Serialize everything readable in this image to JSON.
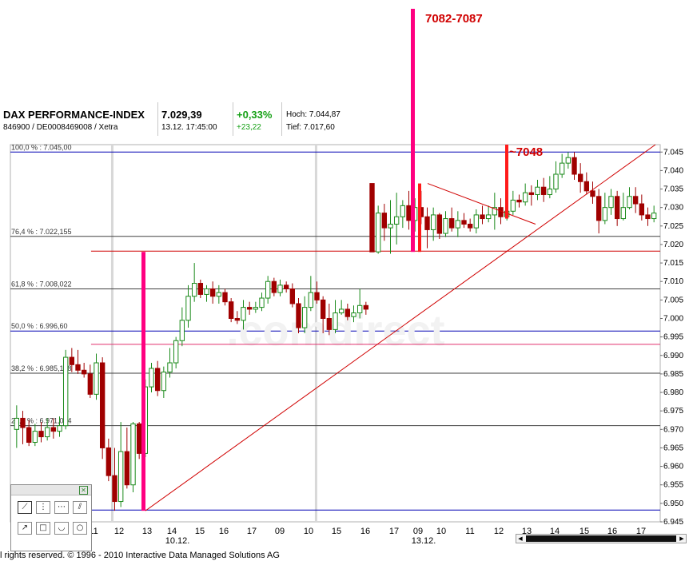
{
  "header": {
    "index_name": "DAX PERFORMANCE-INDEX",
    "identifiers": "846900 / DE0008469008 / Xetra",
    "last_price": "7.029,39",
    "timestamp": "13.12. 17:45:00",
    "change_pct": "+0,33%",
    "change_abs": "+23,22",
    "high": "Hoch: 7.044,87",
    "low": "Tief: 7.017,60"
  },
  "annotations": {
    "target_zone": "7082-7087",
    "target_level": "~7048"
  },
  "toolbox": {
    "tools": [
      "line-tool",
      "vertical-line-tool",
      "horizontal-line-tool",
      "parallel-lines-tool",
      "arrow-tool",
      "rectangle-tool",
      "arc-tool",
      "circle-tool"
    ]
  },
  "footer": {
    "copyright": "l rights reserved. © 1996 - 2010 Interactive Data Managed Solutions AG"
  },
  "watermark": ".comdirect",
  "colors": {
    "up": "#1a8a1a",
    "down": "#a00000",
    "trend": "#d00000",
    "magenta": "#ff0080",
    "fib_blue": "#0000b4"
  },
  "chart_data": {
    "type": "candlestick",
    "title": "DAX PERFORMANCE-INDEX",
    "ylim": [
      6.945,
      7.047
    ],
    "y_ticks": [
      6.945,
      6.95,
      6.955,
      6.96,
      6.965,
      6.97,
      6.975,
      6.98,
      6.985,
      6.99,
      6.995,
      7.0,
      7.005,
      7.01,
      7.015,
      7.02,
      7.025,
      7.03,
      7.035,
      7.04,
      7.045
    ],
    "y_tick_labels": [
      "6.945",
      "6.950",
      "6.955",
      "6.960",
      "6.965",
      "6.970",
      "6.975",
      "6.980",
      "6.985",
      "6.990",
      "6.995",
      "7.000",
      "7.005",
      "7.010",
      "7.015",
      "7.020",
      "7.025",
      "7.030",
      "7.035",
      "7.040",
      "7.045"
    ],
    "time_min": 13.5,
    "time_max": 42.2,
    "x_ticks": [
      {
        "t": 15,
        "label": "15"
      },
      {
        "t": 16,
        "label": "16"
      },
      {
        "t": 17,
        "label": "17"
      },
      {
        "t": 33,
        "label": "09"
      },
      {
        "t": 34,
        "label": "10"
      },
      {
        "t": 35,
        "label": "11"
      },
      {
        "t": 36,
        "label": "12"
      },
      {
        "t": 37,
        "label": "13"
      },
      {
        "t": 38,
        "label": "14"
      },
      {
        "t": 39,
        "label": "15"
      },
      {
        "t": 40,
        "label": "16"
      },
      {
        "t": 41,
        "label": "17"
      },
      {
        "t": 57,
        "label": "09"
      },
      {
        "t": 58,
        "label": "10"
      },
      {
        "t": 59,
        "label": "11"
      },
      {
        "t": 60,
        "label": "12"
      },
      {
        "t": 61,
        "label": "13"
      },
      {
        "t": 62,
        "label": "14"
      },
      {
        "t": 63,
        "label": "15"
      },
      {
        "t": 64,
        "label": "16"
      },
      {
        "t": 65,
        "label": "17"
      }
    ],
    "date_labels": [
      {
        "t": 33,
        "label": "10.12."
      },
      {
        "t": 57,
        "label": "13.12."
      }
    ],
    "fib_levels": [
      {
        "label": "100,0 % : 7.045,00",
        "value": 7.045,
        "color": "blue"
      },
      {
        "label": "76,4 % : 7.022,155",
        "value": 7.0222,
        "color": "dark"
      },
      {
        "label": "61,8 % : 7.008,022",
        "value": 7.008,
        "color": "dark"
      },
      {
        "label": "50,0 % : 6.996,60",
        "value": 6.9966,
        "color": "blue"
      },
      {
        "label": "38,2 % : 6.985,178",
        "value": 6.9852,
        "color": "dark"
      },
      {
        "label": "23,6 % : 6.971,044",
        "value": 6.971,
        "color": "dark"
      },
      {
        "label": "",
        "value": 6.9482,
        "color": "blue"
      }
    ],
    "candles": [
      [
        6.97,
        6.973,
        6.9765,
        6.965
      ],
      [
        6.973,
        6.9705,
        6.975,
        6.966
      ],
      [
        6.9705,
        6.9665,
        6.9725,
        6.9655
      ],
      [
        6.9665,
        6.9695,
        6.9715,
        6.9655
      ],
      [
        6.9695,
        6.968,
        6.972,
        6.9665
      ],
      [
        6.968,
        6.9705,
        6.973,
        6.967
      ],
      [
        6.9705,
        6.9695,
        6.973,
        6.9675
      ],
      [
        6.9695,
        6.971,
        6.9735,
        6.968
      ],
      [
        6.971,
        6.9895,
        6.9915,
        6.97
      ],
      [
        6.9895,
        6.9875,
        6.992,
        6.9855
      ],
      [
        6.9875,
        6.986,
        6.9915,
        6.985
      ],
      [
        6.986,
        6.985,
        6.988,
        6.984
      ],
      [
        6.985,
        6.9795,
        6.9875,
        6.9785
      ],
      [
        6.9795,
        6.988,
        6.9905,
        6.978
      ],
      [
        6.988,
        6.965,
        6.9895,
        6.962
      ],
      [
        6.965,
        6.9575,
        6.9675,
        6.956
      ],
      [
        6.9575,
        6.9505,
        6.965,
        6.948
      ],
      [
        6.9505,
        6.964,
        6.972,
        6.949
      ],
      [
        6.964,
        6.955,
        6.9705,
        6.954
      ],
      [
        6.955,
        6.9715,
        6.972,
        6.953
      ],
      [
        6.9715,
        6.9635,
        6.972,
        6.962
      ],
      [
        6.9635,
        6.9815,
        6.9835,
        6.9625
      ],
      [
        6.9815,
        6.9865,
        6.988,
        6.98
      ],
      [
        6.9865,
        6.9805,
        6.9885,
        6.979
      ],
      [
        6.9805,
        6.9855,
        6.987,
        6.9785
      ],
      [
        6.9855,
        6.988,
        6.992,
        6.984
      ],
      [
        6.988,
        6.994,
        6.995,
        6.9865
      ],
      [
        6.994,
        6.9995,
        7.003,
        6.9925
      ],
      [
        6.9995,
        7.006,
        7.009,
        6.9975
      ],
      [
        7.006,
        7.0095,
        7.015,
        7.0045
      ],
      [
        7.0095,
        7.0065,
        7.0105,
        7.0055
      ],
      [
        7.0065,
        7.008,
        7.009,
        7.0045
      ],
      [
        7.008,
        7.006,
        7.01,
        7.004
      ],
      [
        7.006,
        7.007,
        7.009,
        7.004
      ],
      [
        7.007,
        7.0045,
        7.008,
        7.0035
      ],
      [
        7.0045,
        7.0,
        7.0055,
        6.999
      ],
      [
        7.0,
        6.9995,
        7.002,
        6.9985
      ],
      [
        6.9995,
        7.003,
        7.005,
        6.997
      ],
      [
        7.003,
        7.0025,
        7.0045,
        7.001
      ],
      [
        7.0025,
        7.003,
        7.0045,
        7.0015
      ],
      [
        7.003,
        7.0055,
        7.007,
        7.002
      ],
      [
        7.0055,
        7.01,
        7.0115,
        7.004
      ],
      [
        7.01,
        7.007,
        7.011,
        7.006
      ],
      [
        7.007,
        7.009,
        7.0105,
        7.006
      ],
      [
        7.009,
        7.008,
        7.01,
        7.007
      ],
      [
        7.008,
        7.004,
        7.0095,
        7.003
      ],
      [
        7.004,
        6.9975,
        7.0055,
        6.996
      ],
      [
        6.9975,
        7.003,
        7.006,
        6.996
      ],
      [
        7.003,
        7.007,
        7.0115,
        7.002
      ],
      [
        7.007,
        7.005,
        7.01,
        7.004
      ],
      [
        7.005,
        7.0,
        7.006,
        6.996
      ],
      [
        7.0,
        6.997,
        7.004,
        6.9955
      ],
      [
        6.997,
        7.0015,
        7.005,
        6.996
      ],
      [
        7.0015,
        7.0025,
        7.005,
        7.001
      ],
      [
        7.0025,
        7.0005,
        7.004,
        6.9995
      ],
      [
        7.0005,
        7.0015,
        7.0035,
        6.999
      ],
      [
        7.0015,
        7.0035,
        7.008,
        7.0
      ],
      [
        7.0035,
        7.0025,
        7.0045,
        7.001
      ],
      [
        7.0365,
        7.018,
        7.0365,
        7.018
      ],
      [
        7.018,
        7.0285,
        7.0305,
        7.0175
      ],
      [
        7.0285,
        7.0245,
        7.031,
        7.021
      ],
      [
        7.0245,
        7.0255,
        7.032,
        7.0175
      ],
      [
        7.0255,
        7.0275,
        7.034,
        7.02
      ],
      [
        7.0275,
        7.0305,
        7.032,
        7.0245
      ],
      [
        7.0305,
        7.0265,
        7.0345,
        7.024
      ],
      [
        7.0265,
        7.03,
        7.0325,
        7.0235
      ],
      [
        7.03,
        7.0275,
        7.0345,
        7.0255
      ],
      [
        7.0275,
        7.024,
        7.03,
        7.019
      ],
      [
        7.024,
        7.028,
        7.03,
        7.021
      ],
      [
        7.028,
        7.023,
        7.0285,
        7.0215
      ],
      [
        7.023,
        7.027,
        7.029,
        7.022
      ],
      [
        7.027,
        7.0245,
        7.03,
        7.0235
      ],
      [
        7.0245,
        7.0265,
        7.029,
        7.022
      ],
      [
        7.0265,
        7.0255,
        7.0285,
        7.0245
      ],
      [
        7.0255,
        7.0245,
        7.027,
        7.0235
      ],
      [
        7.0245,
        7.028,
        7.0295,
        7.023
      ],
      [
        7.028,
        7.027,
        7.0305,
        7.0255
      ],
      [
        7.027,
        7.028,
        7.0305,
        7.026
      ],
      [
        7.028,
        7.03,
        7.034,
        7.024
      ],
      [
        7.03,
        7.0275,
        7.0325,
        7.0255
      ],
      [
        7.0275,
        7.029,
        7.032,
        7.0265
      ],
      [
        7.029,
        7.032,
        7.0345,
        7.028
      ],
      [
        7.032,
        7.0315,
        7.0335,
        7.03
      ],
      [
        7.0315,
        7.034,
        7.0365,
        7.0305
      ],
      [
        7.034,
        7.0335,
        7.036,
        7.0305
      ],
      [
        7.0335,
        7.0355,
        7.0375,
        7.032
      ],
      [
        7.0355,
        7.0335,
        7.038,
        7.0315
      ],
      [
        7.0335,
        7.035,
        7.0385,
        7.0325
      ],
      [
        7.035,
        7.039,
        7.0425,
        7.034
      ],
      [
        7.039,
        7.042,
        7.0445,
        7.038
      ],
      [
        7.042,
        7.0435,
        7.045,
        7.0405
      ],
      [
        7.0435,
        7.039,
        7.045,
        7.0375
      ],
      [
        7.039,
        7.037,
        7.042,
        7.034
      ],
      [
        7.037,
        7.0345,
        7.0395,
        7.0335
      ],
      [
        7.0345,
        7.033,
        7.037,
        7.031
      ],
      [
        7.033,
        7.0265,
        7.035,
        7.023
      ],
      [
        7.0265,
        7.03,
        7.034,
        7.0255
      ],
      [
        7.03,
        7.033,
        7.035,
        7.028
      ],
      [
        7.033,
        7.027,
        7.0345,
        7.025
      ],
      [
        7.027,
        7.03,
        7.034,
        7.0265
      ],
      [
        7.03,
        7.033,
        7.0355,
        7.0295
      ],
      [
        7.033,
        7.031,
        7.0355,
        7.0285
      ],
      [
        7.031,
        7.028,
        7.0335,
        7.0265
      ],
      [
        7.028,
        7.027,
        7.03,
        7.025
      ],
      [
        7.027,
        7.0285,
        7.0305,
        7.026
      ]
    ],
    "candle_times_start": 13.6,
    "candle_step": 0.25,
    "trend_lines": [
      {
        "t1": 17.0,
        "y1": 6.948,
        "t2": 42.2,
        "y2": 7.047
      },
      {
        "t1": 34.0,
        "y1": 7.0365,
        "t2": 37.3,
        "y2": 7.0255
      }
    ],
    "horizontal_lines": [
      {
        "value": 7.0182,
        "t_start": 18.0,
        "color": "red"
      },
      {
        "value": 6.993,
        "t_start": 18.0,
        "color": "magenta"
      }
    ],
    "vertical_markers": [
      {
        "t": 17.0,
        "y_top": 7.018,
        "y_bottom": 6.948,
        "color": "magenta"
      },
      {
        "t": 33.0,
        "y_top": 7.095,
        "y_bottom": 7.018,
        "color": "magenta"
      },
      {
        "t": 33.3,
        "y_top": 7.0365,
        "y_bottom": 7.018,
        "color": "red"
      },
      {
        "t": 36.6,
        "y_top": 7.047,
        "y_bottom": 7.027,
        "color": "red"
      }
    ]
  }
}
